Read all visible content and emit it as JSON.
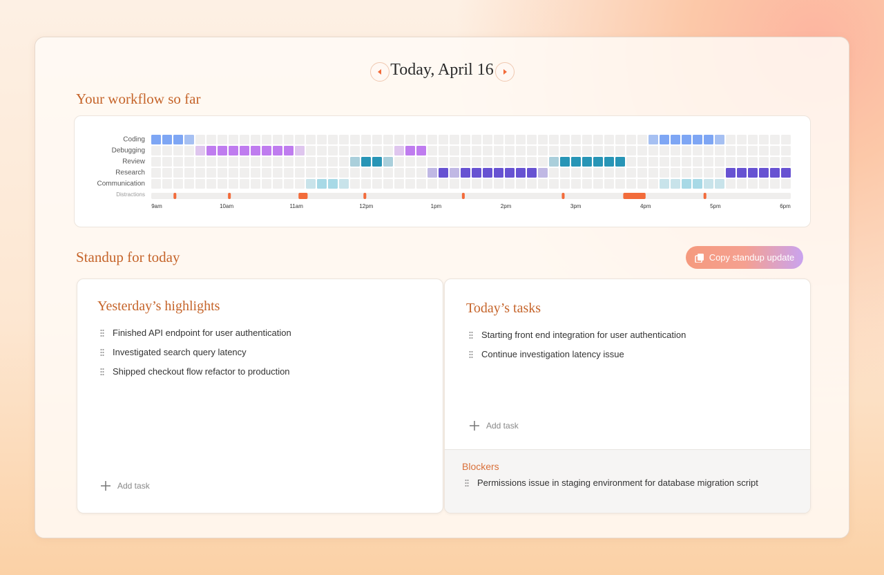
{
  "header": {
    "title": "Today, April 16"
  },
  "workflow": {
    "title": "Your workflow so far",
    "rows": [
      {
        "name": "Coding",
        "color": "#7ea6f4",
        "levels": [
          3,
          3,
          3,
          2,
          0,
          0,
          0,
          0,
          0,
          0,
          0,
          0,
          0,
          0,
          0,
          0,
          0,
          0,
          0,
          0,
          0,
          0,
          0,
          0,
          0,
          0,
          0,
          0,
          0,
          0,
          0,
          0,
          0,
          0,
          0,
          0,
          0,
          0,
          0,
          0,
          0,
          0,
          0,
          0,
          0,
          2,
          3,
          3,
          3,
          3,
          3,
          2,
          0,
          0,
          0,
          0,
          0,
          0
        ]
      },
      {
        "name": "Debugging",
        "color": "#bf7cef",
        "levels": [
          0,
          0,
          0,
          0,
          1,
          3,
          3,
          3,
          3,
          3,
          3,
          3,
          3,
          1,
          0,
          0,
          0,
          0,
          0,
          0,
          0,
          0,
          1,
          3,
          3,
          0,
          0,
          0,
          0,
          0,
          0,
          0,
          0,
          0,
          0,
          0,
          0,
          0,
          0,
          0,
          0,
          0,
          0,
          0,
          0,
          0,
          0,
          0,
          0,
          0,
          0,
          0,
          0,
          0,
          0,
          0,
          0,
          0
        ]
      },
      {
        "name": "Review",
        "color": "#2895b6",
        "levels": [
          0,
          0,
          0,
          0,
          0,
          0,
          0,
          0,
          0,
          0,
          0,
          0,
          0,
          0,
          0,
          0,
          0,
          0,
          1,
          3,
          3,
          1,
          0,
          0,
          0,
          0,
          0,
          0,
          0,
          0,
          0,
          0,
          0,
          0,
          0,
          0,
          1,
          3,
          3,
          3,
          3,
          3,
          3,
          0,
          0,
          0,
          0,
          0,
          0,
          0,
          0,
          0,
          0,
          0,
          0,
          0,
          0,
          0
        ]
      },
      {
        "name": "Research",
        "color": "#6752d2",
        "levels": [
          0,
          0,
          0,
          0,
          0,
          0,
          0,
          0,
          0,
          0,
          0,
          0,
          0,
          0,
          0,
          0,
          0,
          0,
          0,
          0,
          0,
          0,
          0,
          0,
          0,
          1,
          3,
          1,
          3,
          3,
          3,
          3,
          3,
          3,
          3,
          1,
          0,
          0,
          0,
          0,
          0,
          0,
          0,
          0,
          0,
          0,
          0,
          0,
          0,
          0,
          0,
          0,
          3,
          3,
          3,
          3,
          3,
          3
        ]
      },
      {
        "name": "Communication",
        "color": "#7fcde2",
        "levels": [
          0,
          0,
          0,
          0,
          0,
          0,
          0,
          0,
          0,
          0,
          0,
          0,
          0,
          0,
          1,
          2,
          2,
          1,
          0,
          0,
          0,
          0,
          0,
          0,
          0,
          0,
          0,
          0,
          0,
          0,
          0,
          0,
          0,
          0,
          0,
          0,
          0,
          0,
          0,
          0,
          0,
          0,
          0,
          0,
          0,
          0,
          1,
          1,
          2,
          2,
          1,
          1,
          0,
          0,
          0,
          0,
          0,
          0
        ]
      }
    ],
    "distractions_label": "Distractions",
    "distraction_color": "#f26b3a",
    "distractions": [
      {
        "start": 9.24,
        "end": 9.28
      },
      {
        "start": 10.02,
        "end": 10.06
      },
      {
        "start": 11.03,
        "end": 11.16
      },
      {
        "start": 11.96,
        "end": 12.0
      },
      {
        "start": 13.37,
        "end": 13.41
      },
      {
        "start": 14.8,
        "end": 14.84
      },
      {
        "start": 15.68,
        "end": 16.0
      },
      {
        "start": 16.83,
        "end": 16.87
      }
    ],
    "xlim": [
      9,
      18
    ],
    "xticks": [
      {
        "value": 9,
        "label": "9am"
      },
      {
        "value": 10,
        "label": "10am"
      },
      {
        "value": 11,
        "label": "11am"
      },
      {
        "value": 12,
        "label": "12pm"
      },
      {
        "value": 13,
        "label": "1pm"
      },
      {
        "value": 14,
        "label": "2pm"
      },
      {
        "value": 15,
        "label": "3pm"
      },
      {
        "value": 16,
        "label": "4pm"
      },
      {
        "value": 17,
        "label": "5pm"
      },
      {
        "value": 18,
        "label": "6pm"
      }
    ]
  },
  "standup": {
    "title": "Standup for today",
    "copy_button": "Copy standup update",
    "yesterday": {
      "title": "Yesterday’s highlights",
      "items": [
        "Finished API endpoint for user authentication",
        "Investigated search query latency",
        "Shipped checkout flow refactor to production"
      ],
      "add": "Add task"
    },
    "today": {
      "title": "Today’s tasks",
      "items": [
        "Starting front end integration for user authentication",
        "Continue investigation latency issue"
      ],
      "add": "Add task"
    },
    "blockers": {
      "title": "Blockers",
      "items": [
        "Permissions issue in staging environment for database migration script"
      ]
    }
  }
}
